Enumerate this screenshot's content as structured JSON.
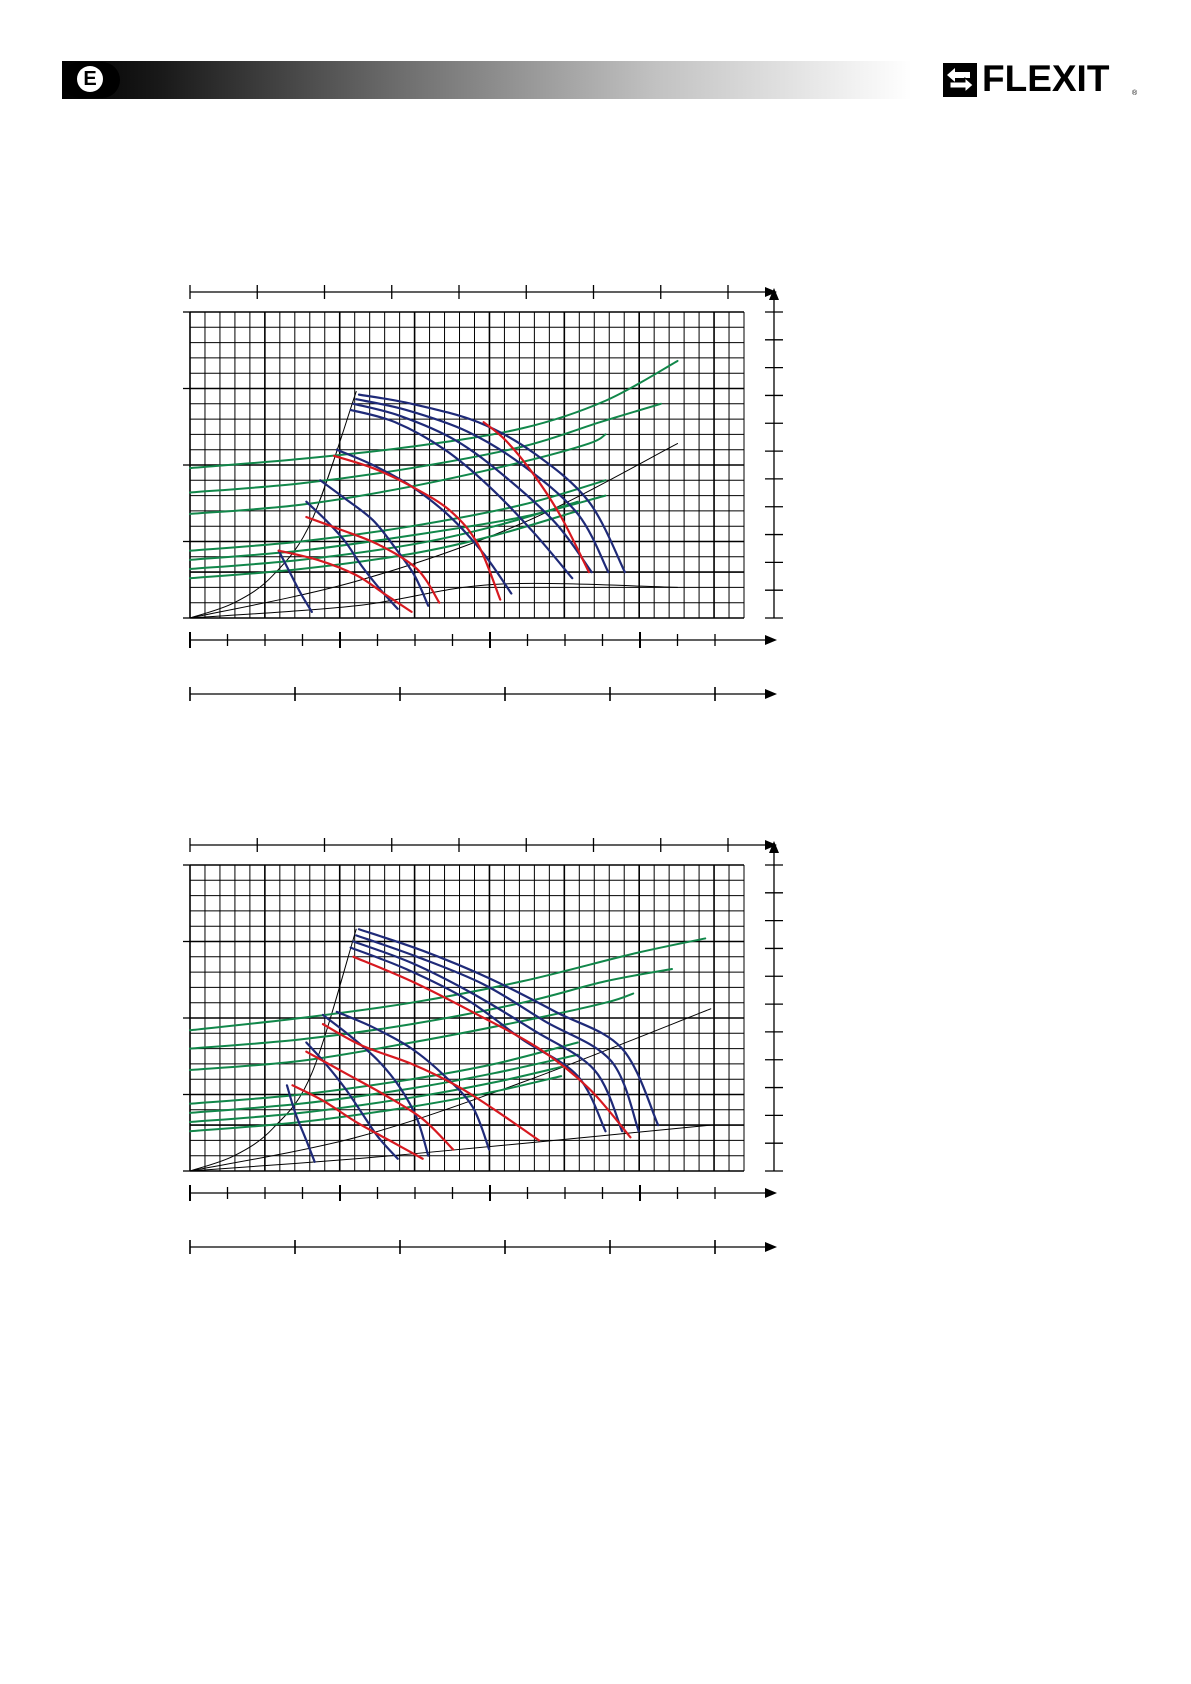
{
  "header": {
    "language_code": "E",
    "brand": "FLEXIT",
    "brand_mark": "®",
    "logo_icon": "double-arrow-icon",
    "gradient_colors": [
      "#000000",
      "#ffffff"
    ]
  },
  "colors": {
    "grid": "#000000",
    "fan_curve": "#1f2a78",
    "power_curve": "#d71920",
    "sound_curve": "#11874a",
    "system_line": "#000000"
  },
  "chart_data": [
    {
      "type": "line",
      "title": "",
      "xlabel": "",
      "ylabel": "",
      "xlim": [
        0,
        100
      ],
      "ylim": [
        0,
        100
      ],
      "grid": true,
      "top_axis_ticks": 9,
      "bottom_axis_ticks": 15,
      "bottom_axis_2_ticks": 6,
      "right_axis_ticks": 12,
      "left_axis_ticks": 5,
      "series": [
        {
          "kind": "fan",
          "x": [
            30.5,
            40,
            52,
            62,
            72,
            78.5
          ],
          "y": [
            73,
            70,
            64,
            54,
            38,
            15
          ]
        },
        {
          "kind": "fan",
          "x": [
            30,
            39,
            50,
            60,
            70,
            75.5
          ],
          "y": [
            71.5,
            68,
            61,
            50,
            34,
            15
          ]
        },
        {
          "kind": "fan",
          "x": [
            29.5,
            38,
            48,
            57,
            66,
            72.5
          ],
          "y": [
            70,
            66,
            58,
            46,
            31,
            15
          ]
        },
        {
          "kind": "fan",
          "x": [
            29,
            37,
            46,
            54,
            62,
            69
          ],
          "y": [
            68,
            64,
            55,
            43,
            28,
            13
          ]
        },
        {
          "kind": "fan",
          "x": [
            26.5,
            33,
            40,
            47,
            53,
            58
          ],
          "y": [
            55,
            50,
            43,
            33,
            21,
            8
          ]
        },
        {
          "kind": "fan",
          "x": [
            23.5,
            28,
            33,
            37,
            40.5,
            43
          ],
          "y": [
            45,
            39,
            32,
            23,
            14,
            4
          ]
        },
        {
          "kind": "fan",
          "x": [
            21,
            24.5,
            28,
            31,
            34.5,
            37.5
          ],
          "y": [
            38,
            32,
            25,
            17,
            9,
            3
          ]
        },
        {
          "kind": "fan",
          "x": [
            16,
            18,
            20,
            22
          ],
          "y": [
            22,
            15,
            8,
            2
          ]
        },
        {
          "kind": "power",
          "x": [
            53,
            57,
            62,
            67,
            72
          ],
          "y": [
            64,
            58,
            47,
            33,
            15
          ]
        },
        {
          "kind": "power",
          "x": [
            26,
            33,
            40,
            47,
            52,
            56
          ],
          "y": [
            53,
            49,
            43,
            35,
            24,
            6
          ]
        },
        {
          "kind": "power",
          "x": [
            21,
            27,
            34,
            41,
            45
          ],
          "y": [
            33,
            29,
            24,
            16,
            5
          ]
        },
        {
          "kind": "power",
          "x": [
            16,
            23,
            30,
            35,
            40
          ],
          "y": [
            22,
            19,
            14,
            8,
            2
          ]
        },
        {
          "kind": "sound",
          "x": [
            0,
            20,
            40,
            60,
            75,
            88
          ],
          "y": [
            49,
            52,
            56,
            62,
            71,
            84
          ]
        },
        {
          "kind": "sound",
          "x": [
            0,
            20,
            40,
            60,
            74,
            85
          ],
          "y": [
            41,
            44,
            49,
            56,
            64,
            70
          ]
        },
        {
          "kind": "sound",
          "x": [
            0,
            20,
            40,
            60,
            72,
            75
          ],
          "y": [
            34,
            37,
            43,
            51,
            57,
            60
          ]
        },
        {
          "kind": "sound",
          "x": [
            0,
            20,
            40,
            60,
            75
          ],
          "y": [
            22,
            25,
            30,
            37,
            45
          ]
        },
        {
          "kind": "sound",
          "x": [
            0,
            20,
            40,
            60,
            75
          ],
          "y": [
            19,
            22,
            27,
            33,
            40
          ]
        },
        {
          "kind": "sound",
          "x": [
            0,
            20,
            40,
            55,
            70
          ],
          "y": [
            16,
            19,
            24,
            30,
            38
          ]
        },
        {
          "kind": "sound",
          "x": [
            0,
            20,
            40,
            55,
            70
          ],
          "y": [
            13,
            16,
            21,
            27,
            35
          ]
        },
        {
          "kind": "system",
          "x": [
            0,
            8,
            15,
            22,
            30
          ],
          "y": [
            0,
            5,
            14,
            32,
            74
          ]
        },
        {
          "kind": "system",
          "x": [
            0,
            30,
            60,
            88
          ],
          "y": [
            0,
            12,
            31,
            57
          ]
        },
        {
          "kind": "system",
          "x": [
            0,
            30,
            55,
            88
          ],
          "y": [
            0,
            4,
            11,
            10
          ]
        }
      ]
    },
    {
      "type": "line",
      "title": "",
      "xlabel": "",
      "ylabel": "",
      "xlim": [
        0,
        100
      ],
      "ylim": [
        0,
        100
      ],
      "grid": true,
      "top_axis_ticks": 9,
      "bottom_axis_ticks": 15,
      "bottom_axis_2_ticks": 6,
      "right_axis_ticks": 12,
      "left_axis_ticks": 5,
      "series": [
        {
          "kind": "fan",
          "x": [
            30.5,
            42,
            54,
            66,
            78,
            84.5
          ],
          "y": [
            79,
            72,
            63,
            52,
            40,
            15
          ]
        },
        {
          "kind": "fan",
          "x": [
            30,
            41,
            53,
            64,
            76,
            81
          ],
          "y": [
            77,
            70,
            61,
            49,
            36,
            13
          ]
        },
        {
          "kind": "fan",
          "x": [
            29.5,
            40,
            51,
            62,
            73,
            78
          ],
          "y": [
            75,
            68,
            58,
            46,
            33,
            13
          ]
        },
        {
          "kind": "fan",
          "x": [
            29,
            39,
            50,
            60,
            70,
            75
          ],
          "y": [
            73,
            66,
            56,
            43,
            31,
            13
          ]
        },
        {
          "kind": "fan",
          "x": [
            26.5,
            33,
            40,
            46,
            51,
            54
          ],
          "y": [
            52,
            47,
            40,
            31,
            21,
            7
          ]
        },
        {
          "kind": "fan",
          "x": [
            24,
            29,
            34,
            38,
            41,
            43
          ],
          "y": [
            51,
            44,
            36,
            27,
            17,
            5
          ]
        },
        {
          "kind": "fan",
          "x": [
            21,
            24.5,
            28,
            31,
            34,
            37.5
          ],
          "y": [
            42,
            35,
            27,
            19,
            11,
            4
          ]
        },
        {
          "kind": "fan",
          "x": [
            17.5,
            19,
            21,
            22.5
          ],
          "y": [
            28,
            19,
            10,
            3
          ]
        },
        {
          "kind": "power",
          "x": [
            29.5,
            40,
            52,
            63,
            72,
            79.5
          ],
          "y": [
            70,
            62,
            51,
            40,
            27,
            11
          ]
        },
        {
          "kind": "power",
          "x": [
            24,
            31,
            40,
            48,
            55,
            63
          ],
          "y": [
            48,
            41,
            35,
            28,
            20,
            10
          ]
        },
        {
          "kind": "power",
          "x": [
            21,
            28,
            35,
            42,
            47.5
          ],
          "y": [
            39,
            32,
            25,
            17,
            7
          ]
        },
        {
          "kind": "power",
          "x": [
            18.5,
            24,
            30,
            36,
            42
          ],
          "y": [
            28,
            23,
            16,
            10,
            4
          ]
        },
        {
          "kind": "sound",
          "x": [
            0,
            20,
            40,
            60,
            80,
            93
          ],
          "y": [
            46,
            50,
            55,
            62,
            71,
            76
          ]
        },
        {
          "kind": "sound",
          "x": [
            0,
            20,
            40,
            60,
            75,
            87
          ],
          "y": [
            40,
            43,
            48,
            55,
            62,
            66
          ]
        },
        {
          "kind": "sound",
          "x": [
            0,
            20,
            40,
            60,
            75,
            80
          ],
          "y": [
            33,
            36,
            42,
            49,
            55,
            58
          ]
        },
        {
          "kind": "sound",
          "x": [
            0,
            20,
            40,
            55,
            70
          ],
          "y": [
            22,
            25,
            30,
            35,
            42
          ]
        },
        {
          "kind": "sound",
          "x": [
            0,
            20,
            40,
            55,
            70
          ],
          "y": [
            19,
            22,
            27,
            32,
            38
          ]
        },
        {
          "kind": "sound",
          "x": [
            0,
            20,
            40,
            55,
            67
          ],
          "y": [
            16,
            19,
            24,
            29,
            34
          ]
        },
        {
          "kind": "sound",
          "x": [
            0,
            20,
            40,
            55,
            67
          ],
          "y": [
            13,
            16,
            21,
            26,
            31
          ]
        },
        {
          "kind": "system",
          "x": [
            0,
            8,
            15,
            22,
            30
          ],
          "y": [
            0,
            5,
            14,
            32,
            79
          ]
        },
        {
          "kind": "system",
          "x": [
            0,
            30,
            60,
            94
          ],
          "y": [
            0,
            11,
            29,
            53
          ]
        },
        {
          "kind": "system",
          "x": [
            0,
            30,
            60,
            94
          ],
          "y": [
            0,
            4,
            9,
            15
          ]
        }
      ]
    }
  ]
}
